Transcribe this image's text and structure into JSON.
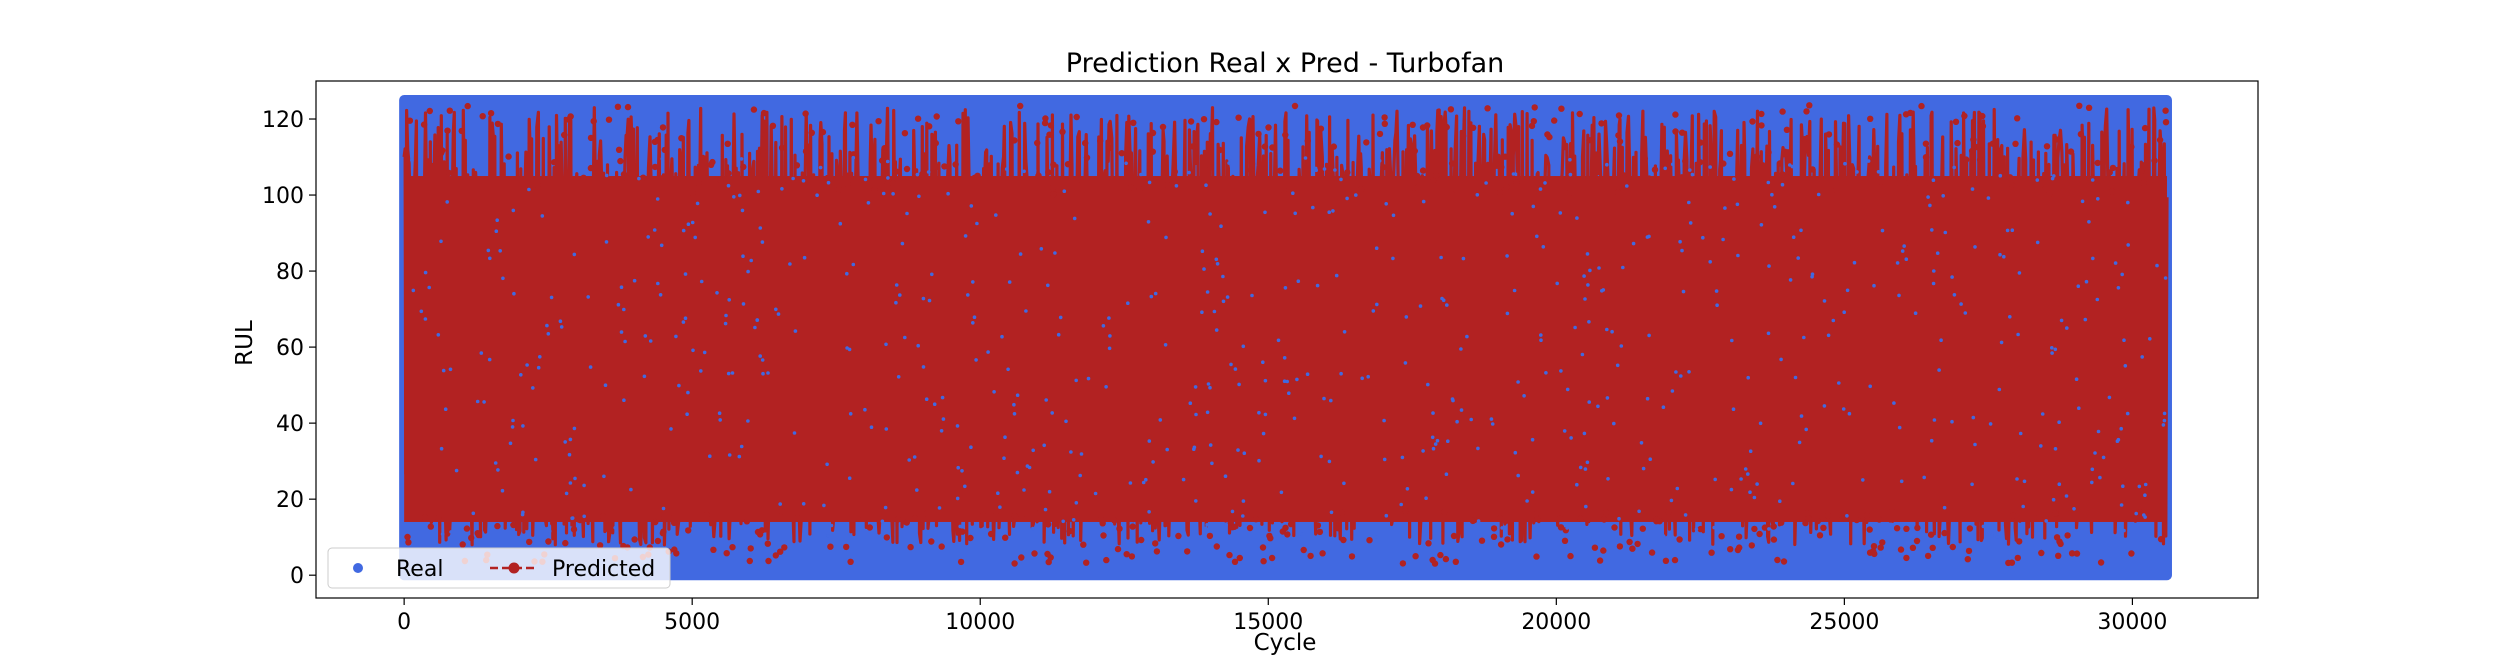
{
  "chart_data": {
    "type": "scatter",
    "title": "Prediction Real x Pred - Turbofan",
    "xlabel": "Cycle",
    "ylabel": "RUL",
    "xlim": [
      -1530,
      32180
    ],
    "ylim": [
      -6,
      130
    ],
    "x_data_range": [
      0,
      30600
    ],
    "x_ticks": [
      0,
      5000,
      10000,
      15000,
      20000,
      25000,
      30000
    ],
    "x_tick_labels": [
      "0",
      "5000",
      "10000",
      "15000",
      "20000",
      "25000",
      "30000"
    ],
    "y_ticks": [
      0,
      20,
      40,
      60,
      80,
      100,
      120
    ],
    "y_tick_labels": [
      "0",
      "20",
      "40",
      "60",
      "80",
      "100",
      "120"
    ],
    "grid": false,
    "legend": {
      "placement": "lower-left",
      "ncol": 2
    },
    "series": [
      {
        "name": "Real",
        "color": "#4169e1",
        "marker": "circle",
        "line": "none",
        "value_range": [
          0,
          125
        ],
        "description_values": "piecewise-linear RUL capped at 125, descending to 0 per engine"
      },
      {
        "name": "Predicted",
        "color": "#b22222",
        "marker": "circle",
        "line": "dashed",
        "value_range": [
          2,
          125
        ]
      }
    ]
  }
}
